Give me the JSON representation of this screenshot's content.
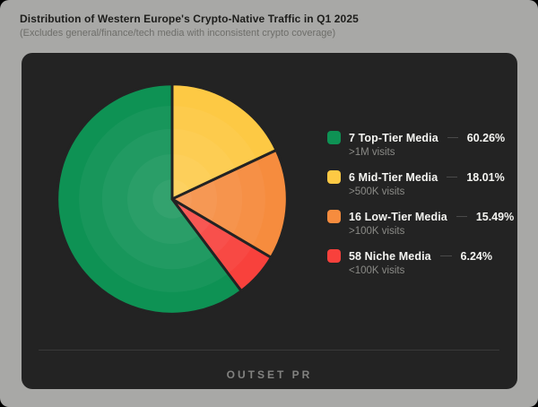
{
  "header": {
    "title": "Distribution of Western Europe's Crypto-Native Traffic in Q1 2025",
    "subtitle": "(Excludes general/finance/tech media with inconsistent crypto coverage)"
  },
  "footer": {
    "brand": "OUTSET PR"
  },
  "colors": {
    "page_bg": "#a8a8a6",
    "panel_bg": "#232323",
    "title_text": "#1d1d1b",
    "subtitle_text": "#6e6e6a",
    "legend_label_text": "#f5f5f2",
    "legend_sublabel_text": "#8a8a86",
    "leader_line": "#4a4a4a",
    "divider": "#3a3a3a",
    "brand_text": "#828280"
  },
  "chart_data": {
    "type": "pie",
    "title": "Distribution of Western Europe's Crypto-Native Traffic in Q1 2025",
    "subtitle": "(Excludes general/finance/tech media with inconsistent crypto coverage)",
    "legend_position": "right",
    "slice_border_color": "#232323",
    "start_rule": "first slice ends at 12 o'clock, slices drawn clockwise in legend order",
    "slices": [
      {
        "label": "7 Top-Tier Media",
        "sublabel": ">1M visits",
        "value": 60.26,
        "display": "60.26%",
        "color": "#0e9254"
      },
      {
        "label": "6 Mid-Tier Media",
        "sublabel": ">500K visits",
        "value": 18.01,
        "display": "18.01%",
        "color": "#fdc944"
      },
      {
        "label": "16 Low-Tier Media",
        "sublabel": ">100K visits",
        "value": 15.49,
        "display": "15.49%",
        "color": "#f68c3e"
      },
      {
        "label": "58 Niche Media",
        "sublabel": "<100K visits",
        "value": 6.24,
        "display": "6.24%",
        "color": "#f8413c"
      }
    ]
  }
}
